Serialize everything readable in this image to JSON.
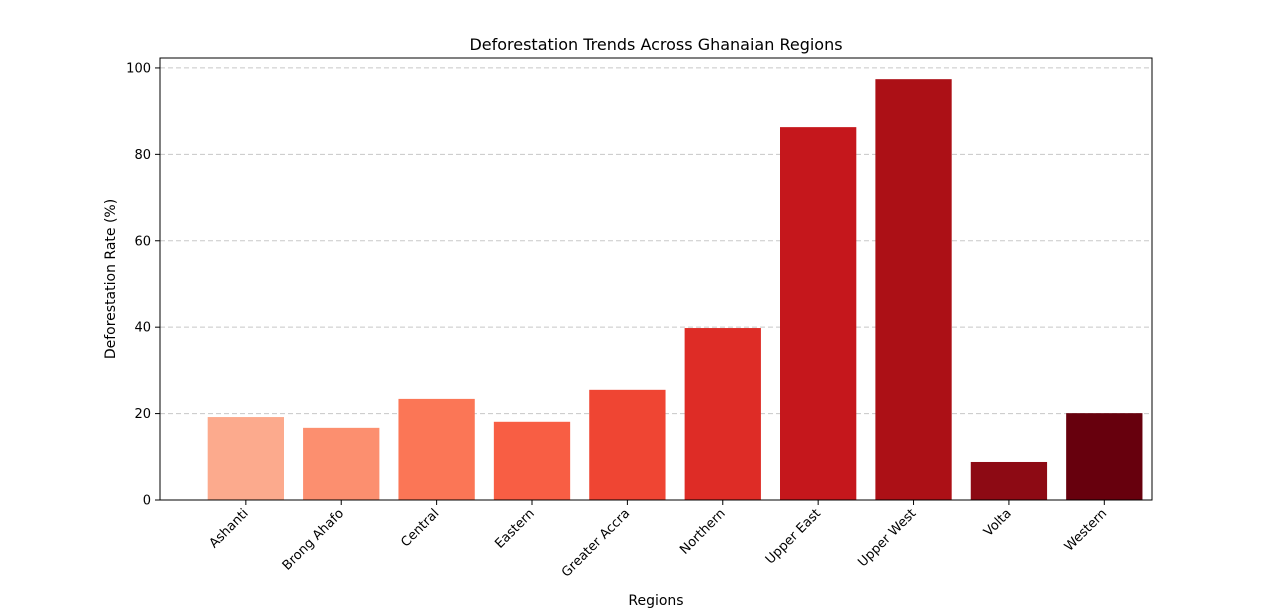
{
  "chart_data": {
    "type": "bar",
    "title": "Deforestation Trends Across Ghanaian Regions",
    "xlabel": "Regions",
    "ylabel": "Deforestation Rate (%)",
    "categories": [
      "Ashanti",
      "Brong Ahafo",
      "Central",
      "Eastern",
      "Greater Accra",
      "Northern",
      "Upper East",
      "Upper West",
      "Volta",
      "Western"
    ],
    "values": [
      19.2,
      16.7,
      23.4,
      18.1,
      25.5,
      39.8,
      86.3,
      97.4,
      8.8,
      20.1
    ],
    "colors": [
      "#fcaa8d",
      "#fc8f6f",
      "#fb7656",
      "#f85e44",
      "#ef4533",
      "#de2c26",
      "#c5171c",
      "#ac1016",
      "#8d0a14",
      "#67000d"
    ],
    "ylim": [
      0,
      102.3
    ],
    "yticks": [
      0,
      20,
      40,
      60,
      80,
      100
    ],
    "grid": "y-dashed",
    "legend": "none"
  }
}
